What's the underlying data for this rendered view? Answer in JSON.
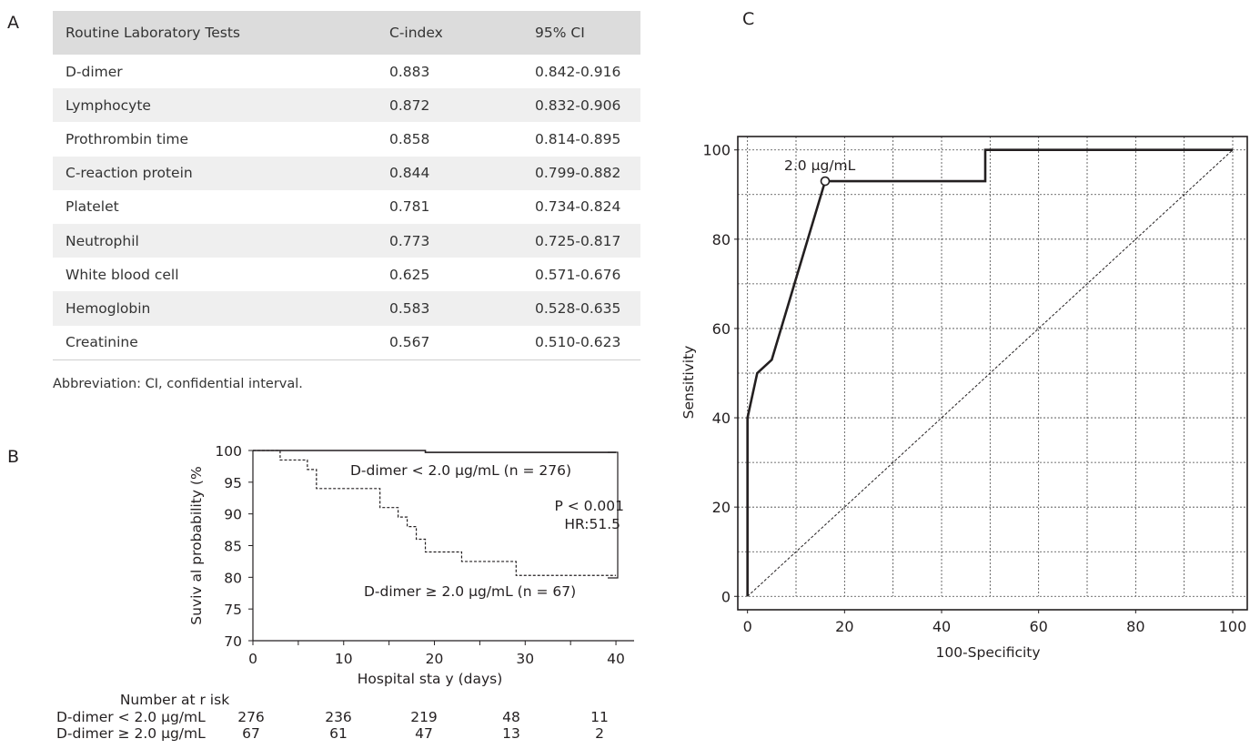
{
  "panels": {
    "a": "A",
    "b": "B",
    "c": "C"
  },
  "table": {
    "headers": [
      "Routine Laboratory Tests",
      "C-index",
      "95% CI"
    ],
    "rows": [
      [
        "D-dimer",
        "0.883",
        "0.842-0.916"
      ],
      [
        "Lymphocyte",
        "0.872",
        "0.832-0.906"
      ],
      [
        "Prothrombin time",
        "0.858",
        "0.814-0.895"
      ],
      [
        "C-reaction protein",
        "0.844",
        "0.799-0.882"
      ],
      [
        "Platelet",
        "0.781",
        "0.734-0.824"
      ],
      [
        "Neutrophil",
        "0.773",
        "0.725-0.817"
      ],
      [
        "White blood cell",
        "0.625",
        "0.571-0.676"
      ],
      [
        "Hemoglobin",
        "0.583",
        "0.528-0.635"
      ],
      [
        "Creatinine",
        "0.567",
        "0.510-0.623"
      ]
    ],
    "footnote": "Abbreviation: CI, confidential interval."
  },
  "chart_data": [
    {
      "type": "line",
      "xlabel": "Hospital sta y (days)",
      "ylabel": "Suviv al probability (%",
      "xlim": [
        0,
        42
      ],
      "ylim": [
        70,
        100
      ],
      "xticks": [
        0,
        10,
        20,
        30,
        40
      ],
      "yticks": [
        70,
        75,
        80,
        85,
        90,
        95,
        100
      ],
      "series": [
        {
          "name": "D-dimer < 2.0 µg/mL (n = 276)",
          "style": "solid",
          "steps": [
            [
              0,
              100
            ],
            [
              19,
              99.7
            ],
            [
              40,
              99.7
            ]
          ]
        },
        {
          "name": "D-dimer  ≥ 2.0 µg/mL (n = 67)",
          "style": "dashed",
          "steps": [
            [
              0,
              100
            ],
            [
              3,
              98.5
            ],
            [
              6,
              97
            ],
            [
              7,
              94
            ],
            [
              14,
              91
            ],
            [
              16,
              89.5
            ],
            [
              17,
              88
            ],
            [
              18,
              86
            ],
            [
              19,
              84
            ],
            [
              23,
              82.5
            ],
            [
              29,
              80.3
            ],
            [
              40,
              80.3
            ]
          ]
        }
      ],
      "annotation": [
        "P  < 0.001",
        "HR:51.5"
      ],
      "risk_table": {
        "title": "Number at r isk",
        "rows": [
          {
            "label": "D-dimer < 2.0 µg/mL",
            "values": [
              "276",
              "236",
              "219",
              "48",
              "11"
            ]
          },
          {
            "label": "D-dimer  ≥ 2.0 µg/mL",
            "values": [
              "67",
              "61",
              "47",
              "13",
              "2"
            ]
          }
        ]
      }
    },
    {
      "type": "line",
      "xlabel": "100-Specificity",
      "ylabel": "Sensitivity",
      "xlim": [
        -2,
        103
      ],
      "ylim": [
        -3,
        103
      ],
      "xticks": [
        0,
        20,
        40,
        60,
        80,
        100
      ],
      "yticks": [
        0,
        20,
        40,
        60,
        80,
        100
      ],
      "series": [
        {
          "style": "solid",
          "points": [
            [
              0,
              0
            ],
            [
              0,
              20
            ],
            [
              0,
              40
            ],
            [
              2,
              50
            ],
            [
              5,
              53
            ],
            [
              16,
              93
            ],
            [
              49,
              93
            ],
            [
              49,
              100
            ],
            [
              100,
              100
            ]
          ]
        }
      ],
      "reference_line": [
        [
          0,
          0
        ],
        [
          100,
          100
        ]
      ],
      "cutoff_label": "2.0 µg/mL",
      "cutoff_point": [
        16,
        93
      ]
    }
  ]
}
